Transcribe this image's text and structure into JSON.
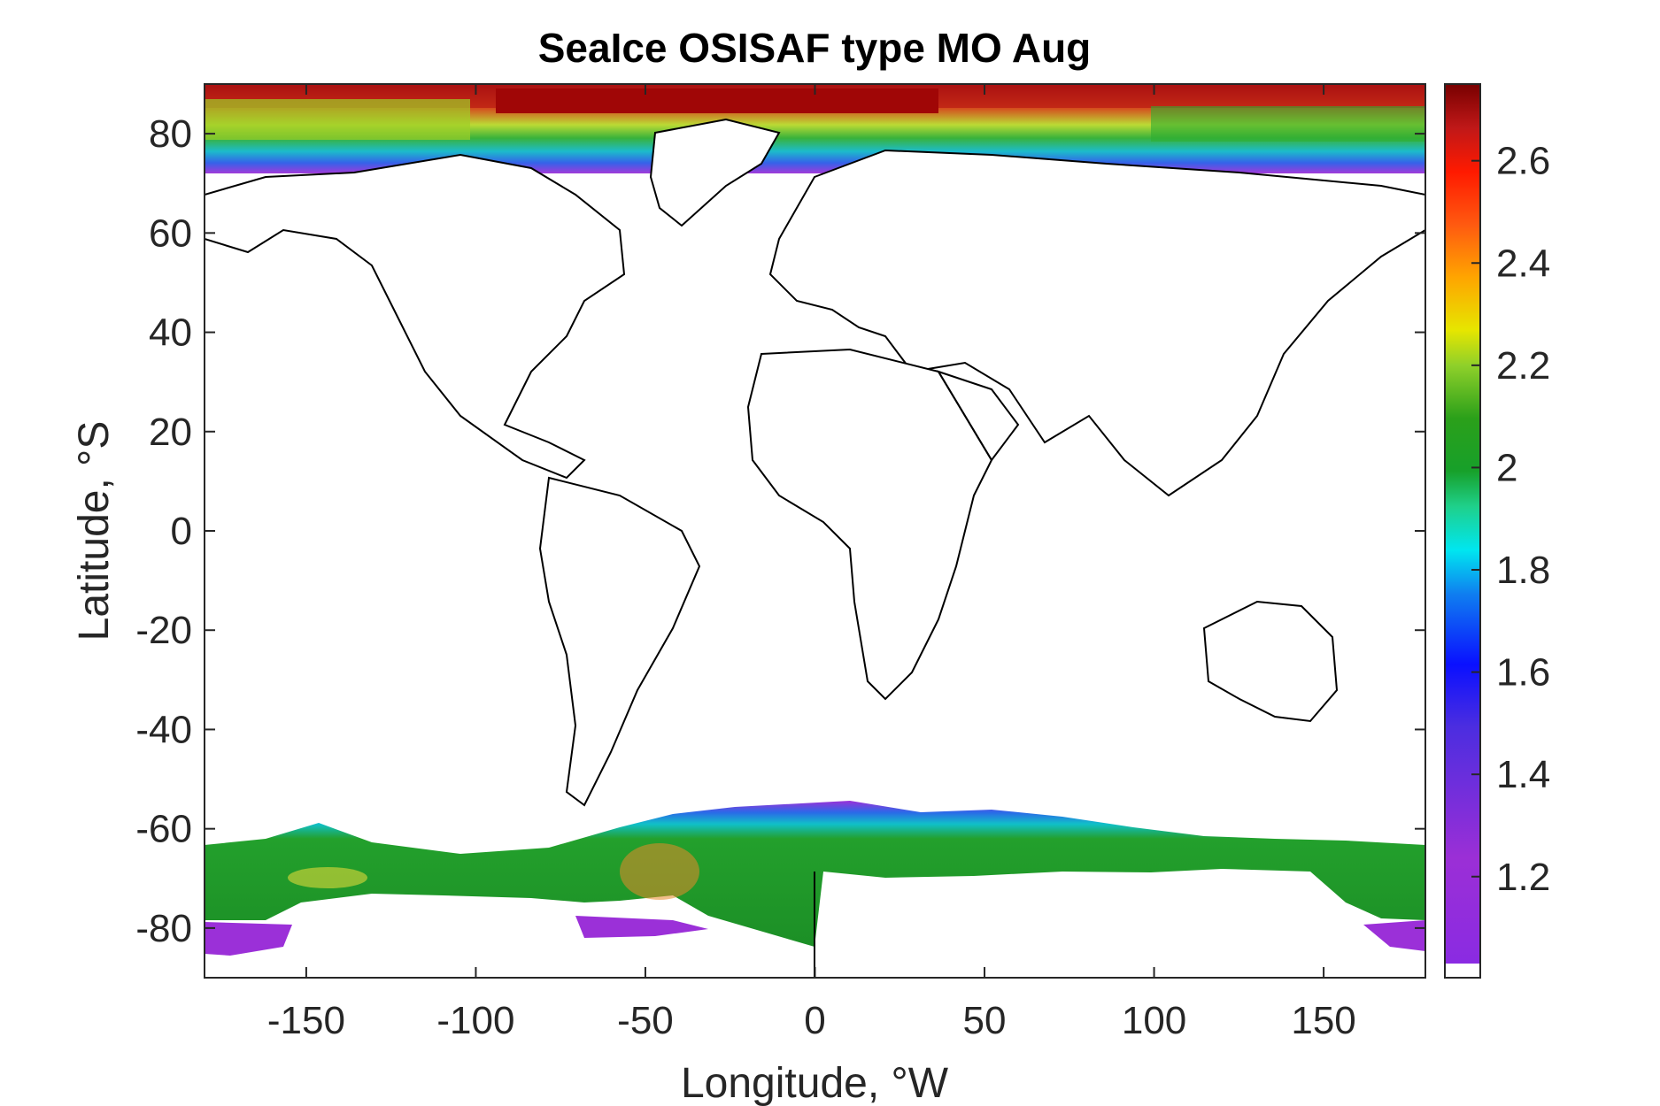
{
  "chart_data": {
    "type": "heatmap",
    "title": "SeaIce OSISAF type MO Aug",
    "xlabel": "Longitude, °W",
    "ylabel": "Latitude, °S",
    "xlim": [
      -180,
      180
    ],
    "ylim": [
      -90,
      90
    ],
    "xticks": [
      -150,
      -100,
      -50,
      0,
      50,
      100,
      150
    ],
    "xtick_labels": [
      "-150",
      "-100",
      "-50",
      "0",
      "50",
      "100",
      "150"
    ],
    "yticks": [
      80,
      60,
      40,
      20,
      0,
      -20,
      -40,
      -60,
      -80
    ],
    "ytick_labels": [
      "80",
      "60",
      "40",
      "20",
      "0",
      "-20",
      "-40",
      "-60",
      "-80"
    ],
    "colorbar": {
      "range": [
        1.03,
        2.75
      ],
      "ticks": [
        2.6,
        2.4,
        2.2,
        2,
        1.8,
        1.6,
        1.4,
        1.2
      ],
      "tick_labels": [
        "2.6",
        "2.4",
        "2.2",
        "2",
        "1.8",
        "1.6",
        "1.4",
        "1.2"
      ],
      "colormap": "jet-like (purple → blue → cyan → green → yellow → orange → red → dark red)"
    },
    "grid": false,
    "regions": {
      "arctic_band_lat": [
        72,
        90
      ],
      "antarctic_band_lat": [
        -85,
        -60
      ]
    },
    "colors": {
      "land_outline": "#000000",
      "background": "#ffffff"
    }
  }
}
